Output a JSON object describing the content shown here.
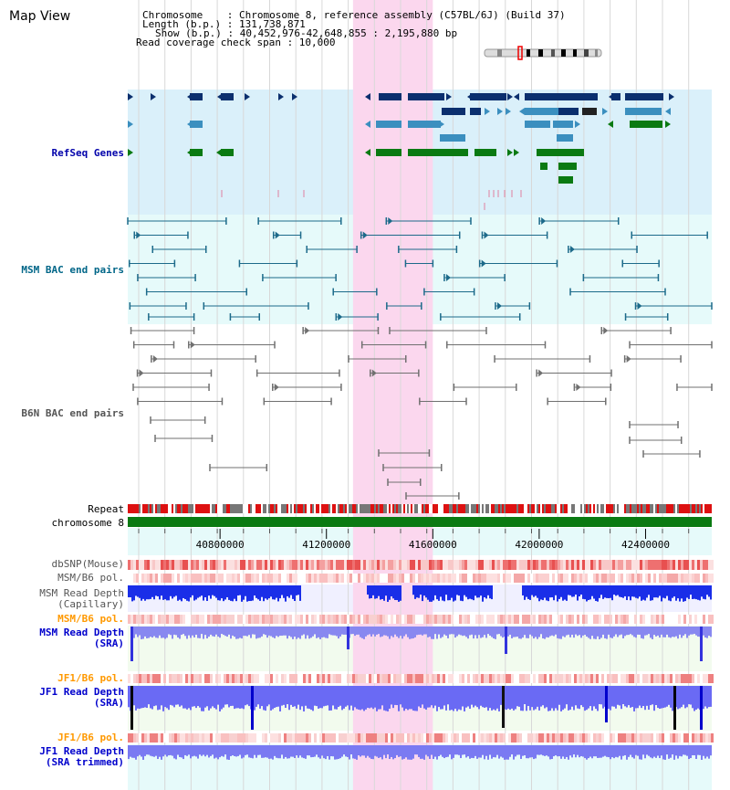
{
  "map_view_title": "Map View",
  "header": {
    "chromosome_line": "Chromosome    : Chromosome 8, reference assembly (C57BL/6J) (Build 37)",
    "length_line": "Length (b.p.) : 131,738,871",
    "show_line": "Show (b.p.) : 40,452,976-42,648,855 : 2,195,880 bp",
    "coverage_line": "Read coverage check span : 10,000"
  },
  "axis": {
    "start": 40452976,
    "end": 42648855,
    "ticks": [
      "40800000",
      "41200000",
      "41600000",
      "42000000",
      "42400000"
    ],
    "tick_values": [
      40800000,
      41200000,
      41600000,
      42000000,
      42400000
    ]
  },
  "highlight_range": [
    41300000,
    41600000
  ],
  "tracks": {
    "refseq": "RefSeq Genes",
    "msm_bac": "MSM BAC end pairs",
    "b6n_bac": "B6N BAC end pairs",
    "repeat": "Repeat",
    "chromosome": "chromosome 8",
    "dbsnp": "dbSNP(Mouse)",
    "msm_b6_pol_1": "MSM/B6 pol.",
    "msm_depth_cap_1": "MSM Read Depth",
    "msm_depth_cap_2": "(Capillary)",
    "msm_b6_pol_2": "MSM/B6 pol.",
    "msm_depth_sra_1": "MSM Read Depth",
    "msm_depth_sra_2": "(SRA)",
    "jf1_b6_pol_1": "JF1/B6 pol.",
    "jf1_depth_sra_1": "JF1 Read Depth",
    "jf1_depth_sra_2": "(SRA)",
    "jf1_b6_pol_2": "JF1/B6 pol.",
    "jf1_depth_trim_1": "JF1 Read Depth",
    "jf1_depth_trim_2": "(SRA trimmed)"
  },
  "colors": {
    "refseq_label": "#0000aa",
    "msm_bac_label": "#006688",
    "b6n_label": "#555555",
    "pol_orange": "#ff9900",
    "depth_blue": "#0000cc",
    "refseq_bg": "#daf0fa",
    "msm_bg": "#e6fafa",
    "highlight": "#fbd7ee"
  }
}
